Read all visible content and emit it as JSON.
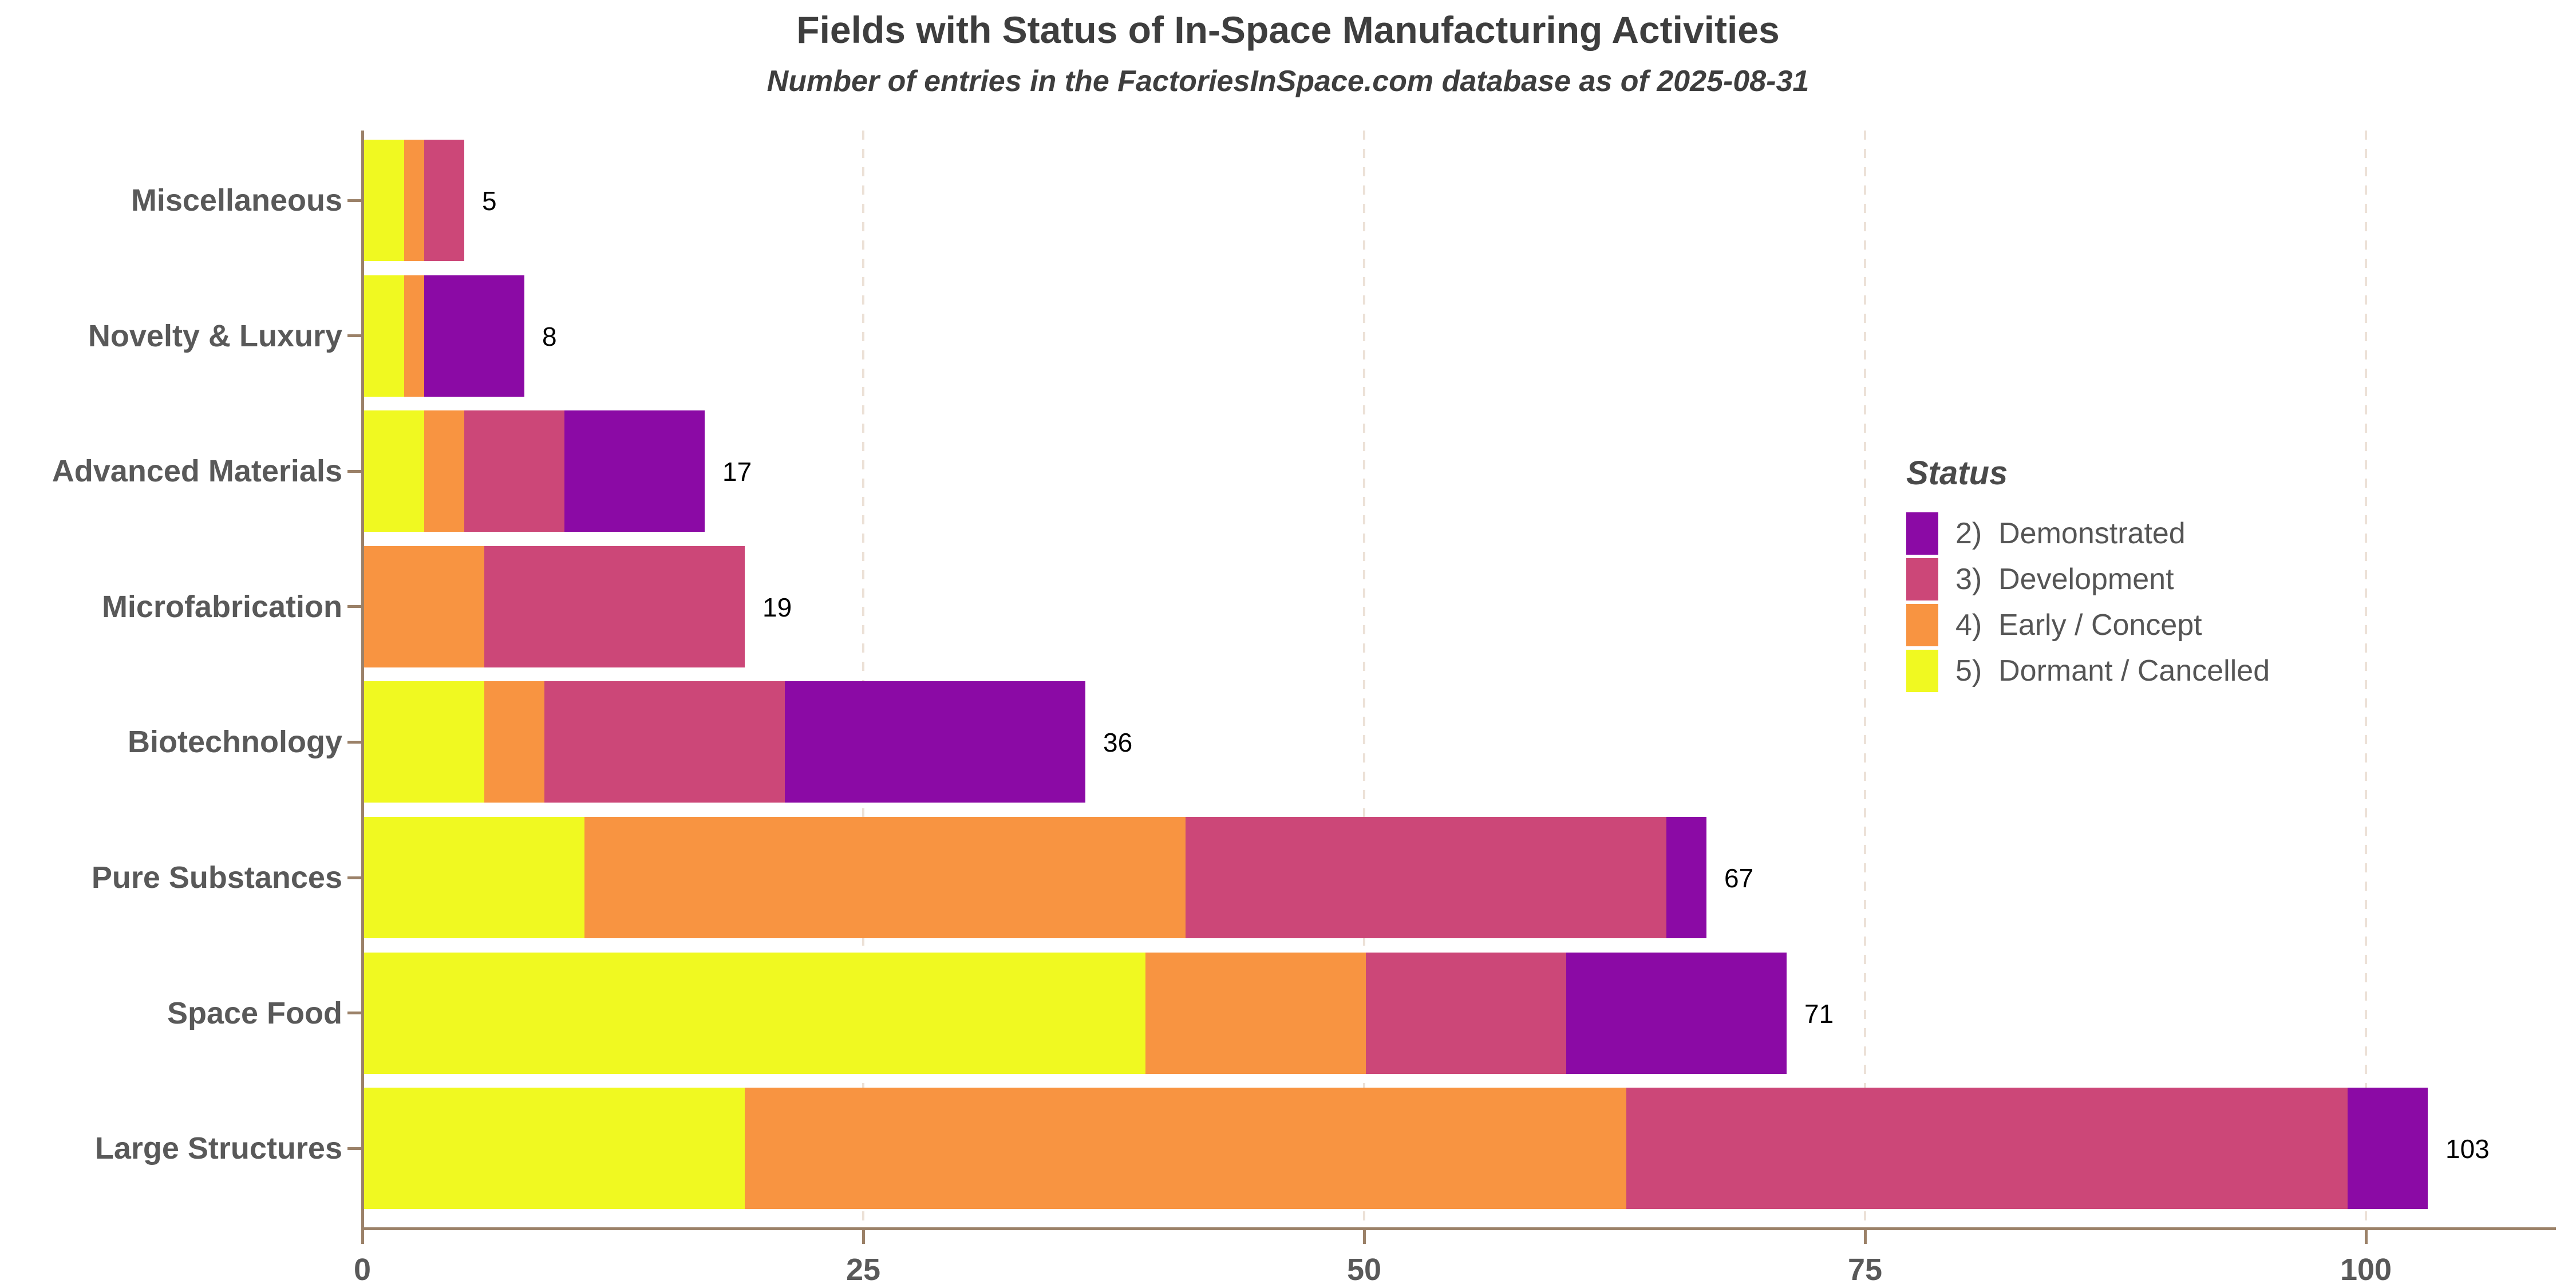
{
  "title": "Fields with Status of In-Space Manufacturing Activities",
  "subtitle": "Number of entries in the FactoriesInSpace.com database as of 2025-08-31",
  "legend": {
    "title": "Status",
    "entries": [
      {
        "label": "2)  Demonstrated",
        "color": "#8b0aa5"
      },
      {
        "label": "3)  Development",
        "color": "#cc4778"
      },
      {
        "label": "4)  Early / Concept",
        "color": "#f89441"
      },
      {
        "label": "5)  Dormant / Cancelled",
        "color": "#f0f921"
      }
    ]
  },
  "chart_data": {
    "type": "bar",
    "orientation": "horizontal",
    "stacked": true,
    "title": "Fields with Status of In-Space Manufacturing Activities",
    "subtitle": "Number of entries in the FactoriesInSpace.com database as of 2025-08-31",
    "xlabel": "",
    "ylabel": "",
    "xlim": [
      0,
      107
    ],
    "x_ticks": [
      0,
      25,
      50,
      75,
      100
    ],
    "grid": "vertical-dashed",
    "legend_position": "right",
    "categories": [
      "Miscellaneous",
      "Novelty & Luxury",
      "Advanced Materials",
      "Microfabrication",
      "Biotechnology",
      "Pure Substances",
      "Space Food",
      "Large Structures"
    ],
    "series": [
      {
        "name": "5)  Dormant / Cancelled",
        "color": "#f0f921",
        "values": [
          2,
          2,
          3,
          0,
          6,
          11,
          39,
          19
        ]
      },
      {
        "name": "4)  Early / Concept",
        "color": "#f89441",
        "values": [
          1,
          1,
          2,
          6,
          3,
          30,
          11,
          44
        ]
      },
      {
        "name": "3)  Development",
        "color": "#cc4778",
        "values": [
          2,
          0,
          5,
          13,
          12,
          24,
          10,
          36
        ]
      },
      {
        "name": "2)  Demonstrated",
        "color": "#8b0aa5",
        "values": [
          0,
          5,
          7,
          0,
          15,
          2,
          11,
          4
        ]
      }
    ],
    "totals": [
      5,
      8,
      17,
      19,
      36,
      67,
      71,
      103
    ]
  },
  "colors": {
    "axis": "#9b8168",
    "grid": "#ece1d7",
    "tick_label": "#595959",
    "title_text": "#3e3e3e",
    "value_label": "#000000",
    "background": "#ffffff"
  }
}
